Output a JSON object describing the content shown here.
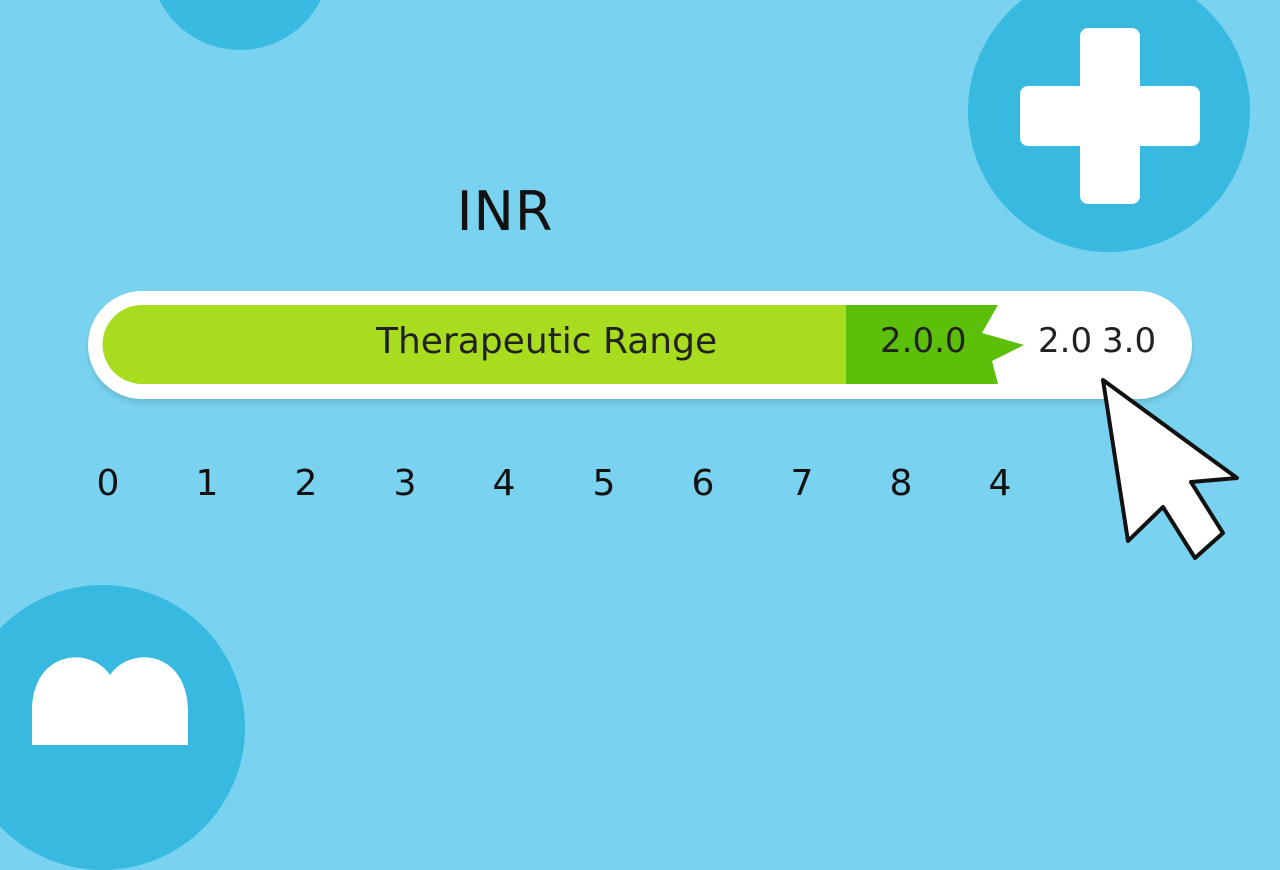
{
  "title": "INR",
  "bar": {
    "label": "Therapeutic Range",
    "flag_value": "2.0.0",
    "range_low": "2.0",
    "range_high": "3.0",
    "fill_colors": {
      "light": "#a8dc1e",
      "dark": "#5cbf0a"
    }
  },
  "scale_ticks": [
    "0",
    "1",
    "2",
    "3",
    "4",
    "5",
    "6",
    "7",
    "8",
    "4"
  ],
  "icons": [
    "plus-icon",
    "heart-icon",
    "cursor-arrow-icon"
  ],
  "colors": {
    "background": "#79d3f0",
    "circle": "#37b9e0"
  }
}
